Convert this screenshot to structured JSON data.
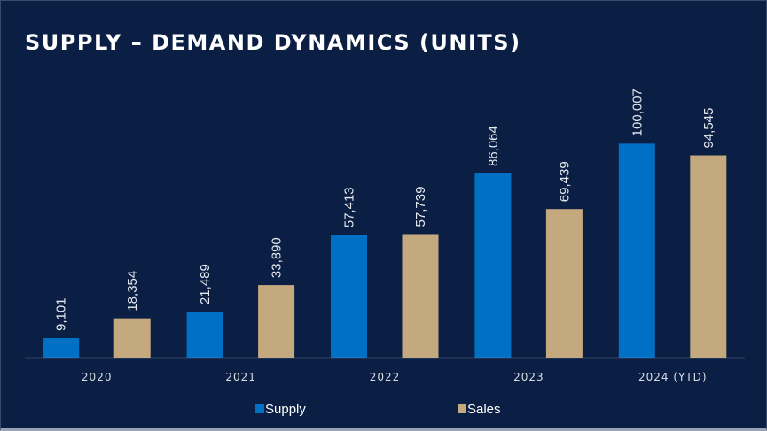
{
  "chart_data": {
    "type": "bar",
    "title": "SUPPLY – DEMAND DYNAMICS (UNITS)",
    "categories": [
      "2020",
      "2021",
      "2022",
      "2023",
      "2024 (YTD)"
    ],
    "series": [
      {
        "name": "Supply",
        "color": "#0070c4",
        "values": [
          9101,
          21489,
          57413,
          86064,
          100007
        ],
        "labels": [
          "9,101",
          "21,489",
          "57,413",
          "86,064",
          "100,007"
        ]
      },
      {
        "name": "Sales",
        "color": "#c4a97f",
        "values": [
          18354,
          33890,
          57739,
          69439,
          94545
        ],
        "labels": [
          "18,354",
          "33,890",
          "57,739",
          "69,439",
          "94,545"
        ]
      }
    ],
    "xlabel": "",
    "ylabel": "",
    "ylim": [
      0,
      120000
    ],
    "grid": false,
    "legend": "bottom-center"
  }
}
